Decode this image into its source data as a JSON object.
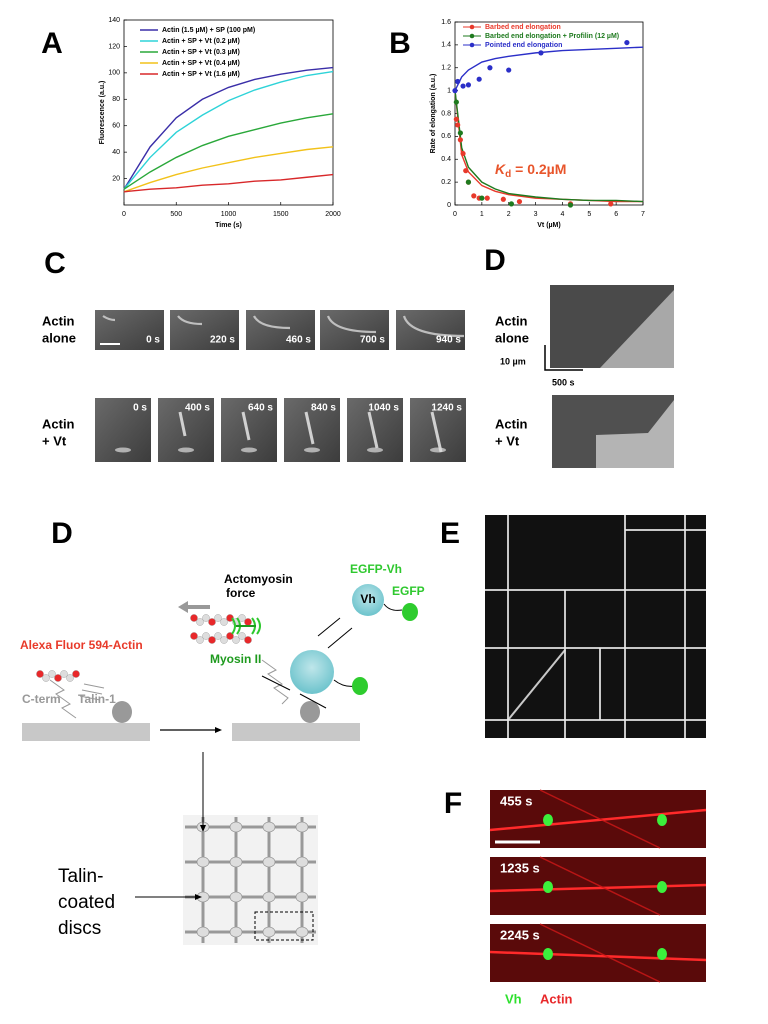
{
  "panel_labels": [
    "A",
    "B",
    "C",
    "D",
    "D",
    "E",
    "F"
  ],
  "chart_data": [
    {
      "type": "line",
      "xlabel": "Time (s)",
      "ylabel": "Fluorescence (a.u.)",
      "x": [
        0,
        250,
        500,
        750,
        1000,
        1250,
        1500,
        1750,
        2000
      ],
      "xlim": [
        0,
        2000
      ],
      "xticks": [
        0,
        500,
        1000,
        1500,
        2000
      ],
      "ylim": [
        0,
        140
      ],
      "yticks": [
        20,
        40,
        60,
        80,
        100,
        120,
        140
      ],
      "legend": "upper left",
      "series": [
        {
          "name": "Actin (1.5 µM) + SP (100 pM)",
          "color": "#3a2ea8",
          "values": [
            12,
            44,
            66,
            80,
            89,
            95,
            99,
            102,
            104
          ]
        },
        {
          "name": "Actin + SP + Vt (0.2 µM)",
          "color": "#2ed3d8",
          "values": [
            12,
            36,
            55,
            68,
            79,
            87,
            93,
            98,
            101
          ]
        },
        {
          "name": "Actin + SP + Vt (0.3 µM)",
          "color": "#2aa83a",
          "values": [
            12,
            25,
            36,
            45,
            52,
            57,
            62,
            66,
            69
          ]
        },
        {
          "name": "Actin + SP + Vt (0.4 µM)",
          "color": "#f2c21a",
          "values": [
            10,
            17,
            23,
            28,
            32,
            36,
            39,
            42,
            44
          ]
        },
        {
          "name": "Actin + SP + Vt (1.6 µM)",
          "color": "#d8282a",
          "values": [
            10,
            12,
            13,
            15,
            16,
            18,
            19,
            21,
            23
          ]
        }
      ]
    },
    {
      "type": "scatter",
      "xlabel": "Vt (µM)",
      "ylabel": "Rate of elongation (a.u.)",
      "xlim": [
        0,
        7
      ],
      "xticks": [
        0,
        1,
        2,
        3,
        4,
        5,
        6,
        7
      ],
      "ylim": [
        0,
        1.6
      ],
      "yticks": [
        0,
        0.2,
        0.4,
        0.6,
        0.8,
        1,
        1.2,
        1.4,
        1.6
      ],
      "legend": "upper left",
      "series": [
        {
          "name": "Barbed end elongation",
          "color": "#e8392b",
          "x": [
            0.05,
            0.1,
            0.2,
            0.3,
            0.4,
            0.5,
            0.7,
            0.9,
            1.2,
            1.8,
            2.4,
            4.3,
            5.8
          ],
          "values": [
            0.75,
            0.7,
            0.57,
            0.45,
            0.3,
            0.2,
            0.08,
            0.06,
            0.06,
            0.05,
            0.03,
            0.01,
            0.01
          ]
        },
        {
          "name": "Barbed end elongation + Profilin (12 µM)",
          "color": "#1e7a1e",
          "x": [
            0.05,
            0.2,
            0.5,
            1,
            2.1,
            4.3
          ],
          "values": [
            0.9,
            0.63,
            0.2,
            0.06,
            0.01,
            0
          ]
        },
        {
          "name": "Pointed end elongation",
          "color": "#2b2fc8",
          "x": [
            0,
            0.1,
            0.3,
            0.5,
            0.9,
            1.3,
            2,
            3.2,
            6.4
          ],
          "values": [
            1,
            1.08,
            1.04,
            1.05,
            1.1,
            1.2,
            1.18,
            1.33,
            1.42
          ]
        }
      ],
      "curves": [
        {
          "color": "#e8392b",
          "x": [
            0,
            0.25,
            0.5,
            1,
            1.5,
            2,
            3,
            4,
            5,
            6,
            7
          ],
          "values": [
            1,
            0.44,
            0.29,
            0.17,
            0.12,
            0.09,
            0.06,
            0.05,
            0.04,
            0.03,
            0.03
          ]
        },
        {
          "color": "#1e7a1e",
          "x": [
            0,
            0.25,
            0.5,
            1,
            1.5,
            2,
            3,
            4,
            5,
            6,
            7
          ],
          "values": [
            1,
            0.5,
            0.33,
            0.2,
            0.14,
            0.1,
            0.07,
            0.05,
            0.04,
            0.04,
            0.03
          ]
        },
        {
          "color": "#2b2fc8",
          "x": [
            0,
            0.25,
            0.5,
            1,
            1.5,
            2,
            3,
            4,
            5,
            6,
            7
          ],
          "values": [
            1,
            1.12,
            1.18,
            1.25,
            1.28,
            1.3,
            1.33,
            1.35,
            1.36,
            1.37,
            1.38
          ]
        }
      ],
      "annotation": {
        "symbol": "K",
        "subscript": "d",
        "text": " = 0.2µM",
        "color": "#e8552b"
      }
    }
  ],
  "panel_c": {
    "rows": [
      {
        "label": [
          "Actin",
          "alone"
        ],
        "times": [
          "0 s",
          "220 s",
          "460 s",
          "700 s",
          "940 s"
        ]
      },
      {
        "label": [
          "Actin",
          "+ Vt"
        ],
        "times": [
          "0 s",
          "400 s",
          "640 s",
          "840 s",
          "1040 s",
          "1240 s"
        ]
      }
    ]
  },
  "panel_d_kymo": {
    "rows": [
      [
        "Actin",
        "alone"
      ],
      [
        "Actin",
        "+ Vt"
      ]
    ],
    "scale_length": "10 µm",
    "scale_time": "500 s"
  },
  "diagram": {
    "egfp_vh": "EGFP-Vh",
    "vh": "Vh",
    "egfp": "EGFP",
    "force": [
      "Actomyosin",
      "force"
    ],
    "actin": "Alexa Fluor 594-Actin",
    "cterm": "C-term",
    "talin": "Talin-1",
    "myosin": "Myosin II",
    "discs": [
      "Talin-",
      "coated",
      "discs"
    ]
  },
  "panel_f": {
    "times": [
      "455 s",
      "1235 s",
      "2245 s"
    ],
    "legend": [
      {
        "text": "Vh",
        "color": "#2ee02e"
      },
      {
        "text": "Actin",
        "color": "#e8282a"
      }
    ]
  }
}
